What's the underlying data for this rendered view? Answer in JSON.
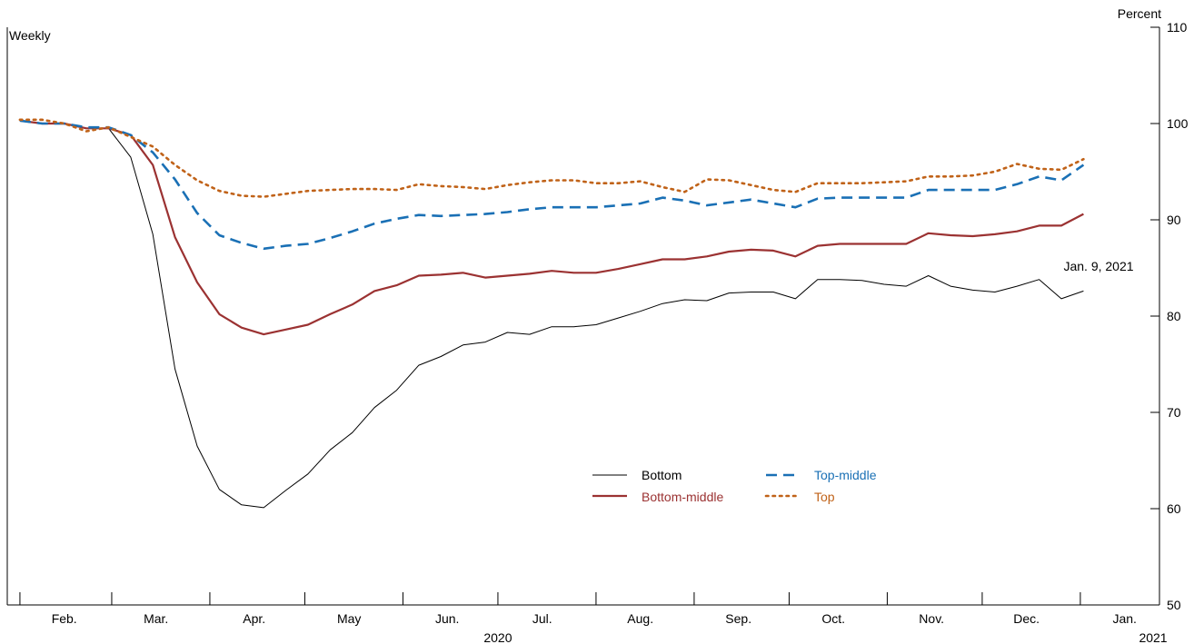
{
  "chart_data": {
    "type": "line",
    "frequency_label": "Weekly",
    "unit_label": "Percent",
    "annotation": "Jan. 9, 2021",
    "ylim": [
      50,
      110
    ],
    "yticks": [
      50,
      60,
      70,
      80,
      90,
      100,
      110
    ],
    "xlim": [
      "2020-01-28",
      "2021-01-26"
    ],
    "month_boundaries": [
      "2020-02-01",
      "2020-03-01",
      "2020-04-01",
      "2020-05-01",
      "2020-06-01",
      "2020-07-01",
      "2020-08-01",
      "2020-09-01",
      "2020-10-01",
      "2020-11-01",
      "2020-12-01",
      "2021-01-01"
    ],
    "month_labels": [
      {
        "label": "Feb.",
        "date": "2020-02-15"
      },
      {
        "label": "Mar.",
        "date": "2020-03-15"
      },
      {
        "label": "Apr.",
        "date": "2020-04-15"
      },
      {
        "label": "May",
        "date": "2020-05-15"
      },
      {
        "label": "Jun.",
        "date": "2020-06-15"
      },
      {
        "label": "Jul.",
        "date": "2020-07-15"
      },
      {
        "label": "Aug.",
        "date": "2020-08-15"
      },
      {
        "label": "Sep.",
        "date": "2020-09-15"
      },
      {
        "label": "Oct.",
        "date": "2020-10-15"
      },
      {
        "label": "Nov.",
        "date": "2020-11-15"
      },
      {
        "label": "Dec.",
        "date": "2020-12-15"
      },
      {
        "label": "Jan.",
        "date": "2021-01-15"
      }
    ],
    "year_labels": [
      {
        "label": "2020",
        "date": "2020-07-01"
      },
      {
        "label": "2021",
        "date": "2021-01-24"
      }
    ],
    "x": [
      "2020-02-01",
      "2020-02-08",
      "2020-02-15",
      "2020-02-22",
      "2020-02-29",
      "2020-03-07",
      "2020-03-14",
      "2020-03-21",
      "2020-03-28",
      "2020-04-04",
      "2020-04-11",
      "2020-04-18",
      "2020-04-25",
      "2020-05-02",
      "2020-05-09",
      "2020-05-16",
      "2020-05-23",
      "2020-05-30",
      "2020-06-06",
      "2020-06-13",
      "2020-06-20",
      "2020-06-27",
      "2020-07-04",
      "2020-07-11",
      "2020-07-18",
      "2020-07-25",
      "2020-08-01",
      "2020-08-08",
      "2020-08-15",
      "2020-08-22",
      "2020-08-29",
      "2020-09-05",
      "2020-09-12",
      "2020-09-19",
      "2020-09-26",
      "2020-10-03",
      "2020-10-10",
      "2020-10-17",
      "2020-10-24",
      "2020-10-31",
      "2020-11-07",
      "2020-11-14",
      "2020-11-21",
      "2020-11-28",
      "2020-12-05",
      "2020-12-12",
      "2020-12-19",
      "2020-12-26",
      "2021-01-02",
      "2021-01-09"
    ],
    "series": [
      {
        "name": "Bottom",
        "color": "#000000",
        "style": "solid",
        "width": 1,
        "values": [
          100.3,
          100,
          100,
          99.5,
          99.5,
          96.5,
          88.5,
          74.5,
          66.5,
          62,
          60.4,
          60.1,
          61.9,
          63.6,
          66.1,
          67.9,
          70.5,
          72.3,
          74.9,
          75.8,
          77,
          77.3,
          78.3,
          78.1,
          78.9,
          78.9,
          79.1,
          79.8,
          80.5,
          81.3,
          81.7,
          81.6,
          82.4,
          82.5,
          82.5,
          81.8,
          83.8,
          83.8,
          83.7,
          83.3,
          83.1,
          84.2,
          83.1,
          82.7,
          82.5,
          83.1,
          83.8,
          81.8,
          82.6,
          null
        ]
      },
      {
        "name": "Bottom-middle",
        "color": "#9b3232",
        "style": "solid",
        "width": 2.2,
        "values": [
          100.3,
          100,
          100,
          99.5,
          99.5,
          98.8,
          95.7,
          88.2,
          83.5,
          80.2,
          78.8,
          78.1,
          78.6,
          79.1,
          80.2,
          81.2,
          82.6,
          83.2,
          84.2,
          84.3,
          84.5,
          84,
          84.2,
          84.4,
          84.7,
          84.5,
          84.5,
          84.9,
          85.4,
          85.9,
          85.9,
          86.2,
          86.7,
          86.9,
          86.8,
          86.2,
          87.3,
          87.5,
          87.5,
          87.5,
          87.5,
          88.6,
          88.4,
          88.3,
          88.5,
          88.8,
          89.4,
          89.4,
          90.6,
          null
        ]
      },
      {
        "name": "Top-middle",
        "color": "#1a70b5",
        "style": "dashed",
        "width": 2.6,
        "values": [
          100.3,
          100,
          100,
          99.6,
          99.6,
          98.8,
          97,
          94.2,
          90.7,
          88.4,
          87.6,
          87,
          87.3,
          87.5,
          88.1,
          88.8,
          89.6,
          90.1,
          90.5,
          90.4,
          90.5,
          90.6,
          90.8,
          91.1,
          91.3,
          91.3,
          91.3,
          91.5,
          91.7,
          92.3,
          92,
          91.5,
          91.8,
          92.1,
          91.7,
          91.3,
          92.2,
          92.3,
          92.3,
          92.3,
          92.3,
          93.1,
          93.1,
          93.1,
          93.1,
          93.7,
          94.5,
          94.1,
          95.7,
          null
        ]
      },
      {
        "name": "Top",
        "color": "#c06218",
        "style": "dotted",
        "width": 2.6,
        "values": [
          100.4,
          100.4,
          100,
          99.2,
          99.6,
          98.6,
          97.6,
          95.7,
          94.1,
          93,
          92.5,
          92.4,
          92.7,
          93,
          93.1,
          93.2,
          93.2,
          93.1,
          93.7,
          93.5,
          93.4,
          93.2,
          93.6,
          93.9,
          94.1,
          94.1,
          93.8,
          93.8,
          94,
          93.4,
          92.9,
          94.2,
          94.1,
          93.6,
          93.1,
          92.9,
          93.8,
          93.8,
          93.8,
          93.9,
          94,
          94.5,
          94.5,
          94.6,
          95,
          95.8,
          95.3,
          95.2,
          96.3,
          null
        ]
      }
    ],
    "legend": {
      "placement": "center-bottom"
    }
  }
}
